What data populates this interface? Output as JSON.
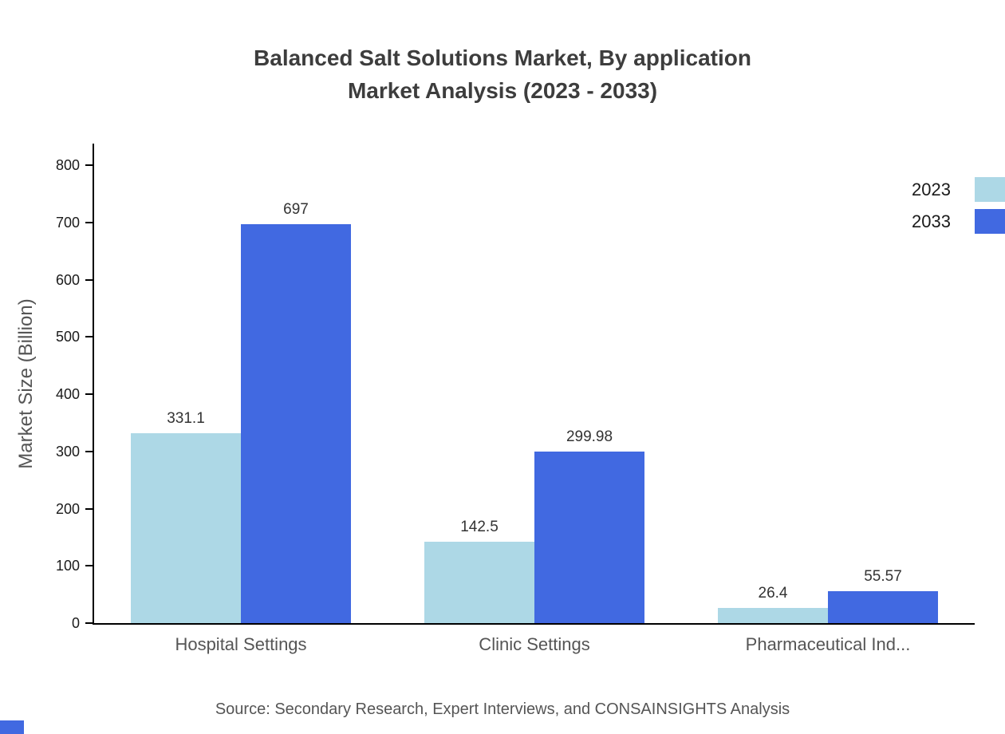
{
  "title_line1": "Balanced Salt Solutions Market, By application",
  "title_line2": "Market Analysis (2023 - 2033)",
  "source": "Source: Secondary Research, Expert Interviews, and CONSAINSIGHTS Analysis",
  "colors": {
    "series_2023": "#add8e6",
    "series_2033": "#4169e1",
    "axis": "#000000",
    "title_text": "#3d3d3d",
    "muted_text": "#555555"
  },
  "chart_data": {
    "type": "bar",
    "title": "Balanced Salt Solutions Market, By application Market Analysis (2023 - 2033)",
    "categories": [
      "Hospital Settings",
      "Clinic Settings",
      "Pharmaceutical Ind..."
    ],
    "series": [
      {
        "name": "2023",
        "color": "#add8e6",
        "values": [
          331.1,
          142.5,
          26.4
        ]
      },
      {
        "name": "2033",
        "color": "#4169e1",
        "values": [
          697,
          299.98,
          55.57
        ]
      }
    ],
    "xlabel": "",
    "ylabel": "Market Size (Billion)",
    "ylim": [
      0,
      800
    ],
    "yticks": [
      0,
      100,
      200,
      300,
      400,
      500,
      600,
      700,
      800
    ],
    "grid": false,
    "legend_position": "top-right"
  }
}
